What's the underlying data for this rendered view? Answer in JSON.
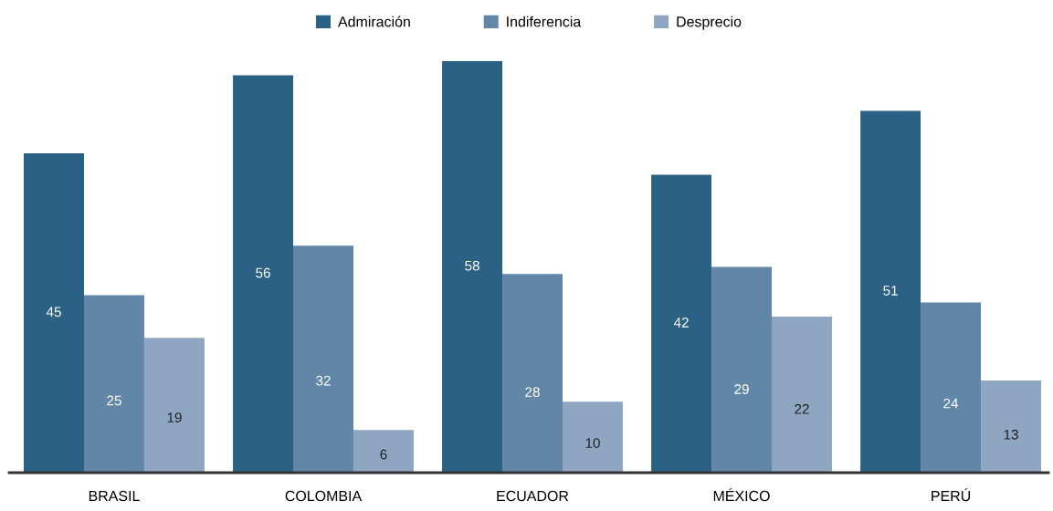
{
  "chart_data": {
    "type": "bar",
    "categories": [
      "BRASIL",
      "COLOMBIA",
      "ECUADOR",
      "MÉXICO",
      "PERÚ"
    ],
    "series": [
      {
        "name": "Admiración",
        "color": "#2a6184",
        "values": [
          45,
          56,
          58,
          42,
          51
        ]
      },
      {
        "name": "Indiferencia",
        "color": "#6286a8",
        "values": [
          25,
          32,
          28,
          29,
          24
        ]
      },
      {
        "name": "Desprecio",
        "color": "#8fa6c3",
        "values": [
          19,
          6,
          10,
          22,
          13
        ]
      }
    ],
    "data_labels": true,
    "legend": "top",
    "grid": false
  }
}
